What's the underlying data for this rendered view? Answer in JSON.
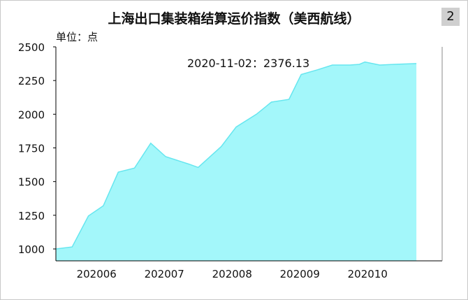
{
  "chart_data": {
    "type": "area",
    "title": "上海出口集装箱结算运价指数（美西航线）",
    "unit_label": "单位：点",
    "badge": "2",
    "annotation": "2020-11-02：2376.13",
    "yticks": [
      "2500",
      "2250",
      "2000",
      "1750",
      "1500",
      "1250",
      "1000"
    ],
    "xticks": [
      "202006",
      "202007",
      "202008",
      "202009",
      "202010"
    ],
    "ylim": [
      920,
      2500
    ],
    "xlim": [
      0,
      28.5
    ],
    "tick_positions": [
      3,
      8,
      13,
      18,
      23
    ],
    "series": [
      {
        "values": [
          [
            0,
            1000
          ],
          [
            1.2,
            1015
          ],
          [
            2.4,
            1245
          ],
          [
            3.5,
            1320
          ],
          [
            4.6,
            1570
          ],
          [
            5.8,
            1600
          ],
          [
            7.0,
            1785
          ],
          [
            8.1,
            1685
          ],
          [
            9.8,
            1630
          ],
          [
            10.5,
            1605
          ],
          [
            12.2,
            1760
          ],
          [
            13.3,
            1905
          ],
          [
            14.8,
            2000
          ],
          [
            15.9,
            2090
          ],
          [
            17.2,
            2110
          ],
          [
            18.1,
            2295
          ],
          [
            19.3,
            2330
          ],
          [
            20.4,
            2365
          ],
          [
            21.7,
            2365
          ],
          [
            22.4,
            2370
          ],
          [
            22.8,
            2388
          ],
          [
            23.9,
            2365
          ],
          [
            25.0,
            2370
          ],
          [
            26.6,
            2376
          ]
        ],
        "color": "#a3f7fa",
        "line_color": "#66e6ef"
      }
    ],
    "grid": false
  }
}
